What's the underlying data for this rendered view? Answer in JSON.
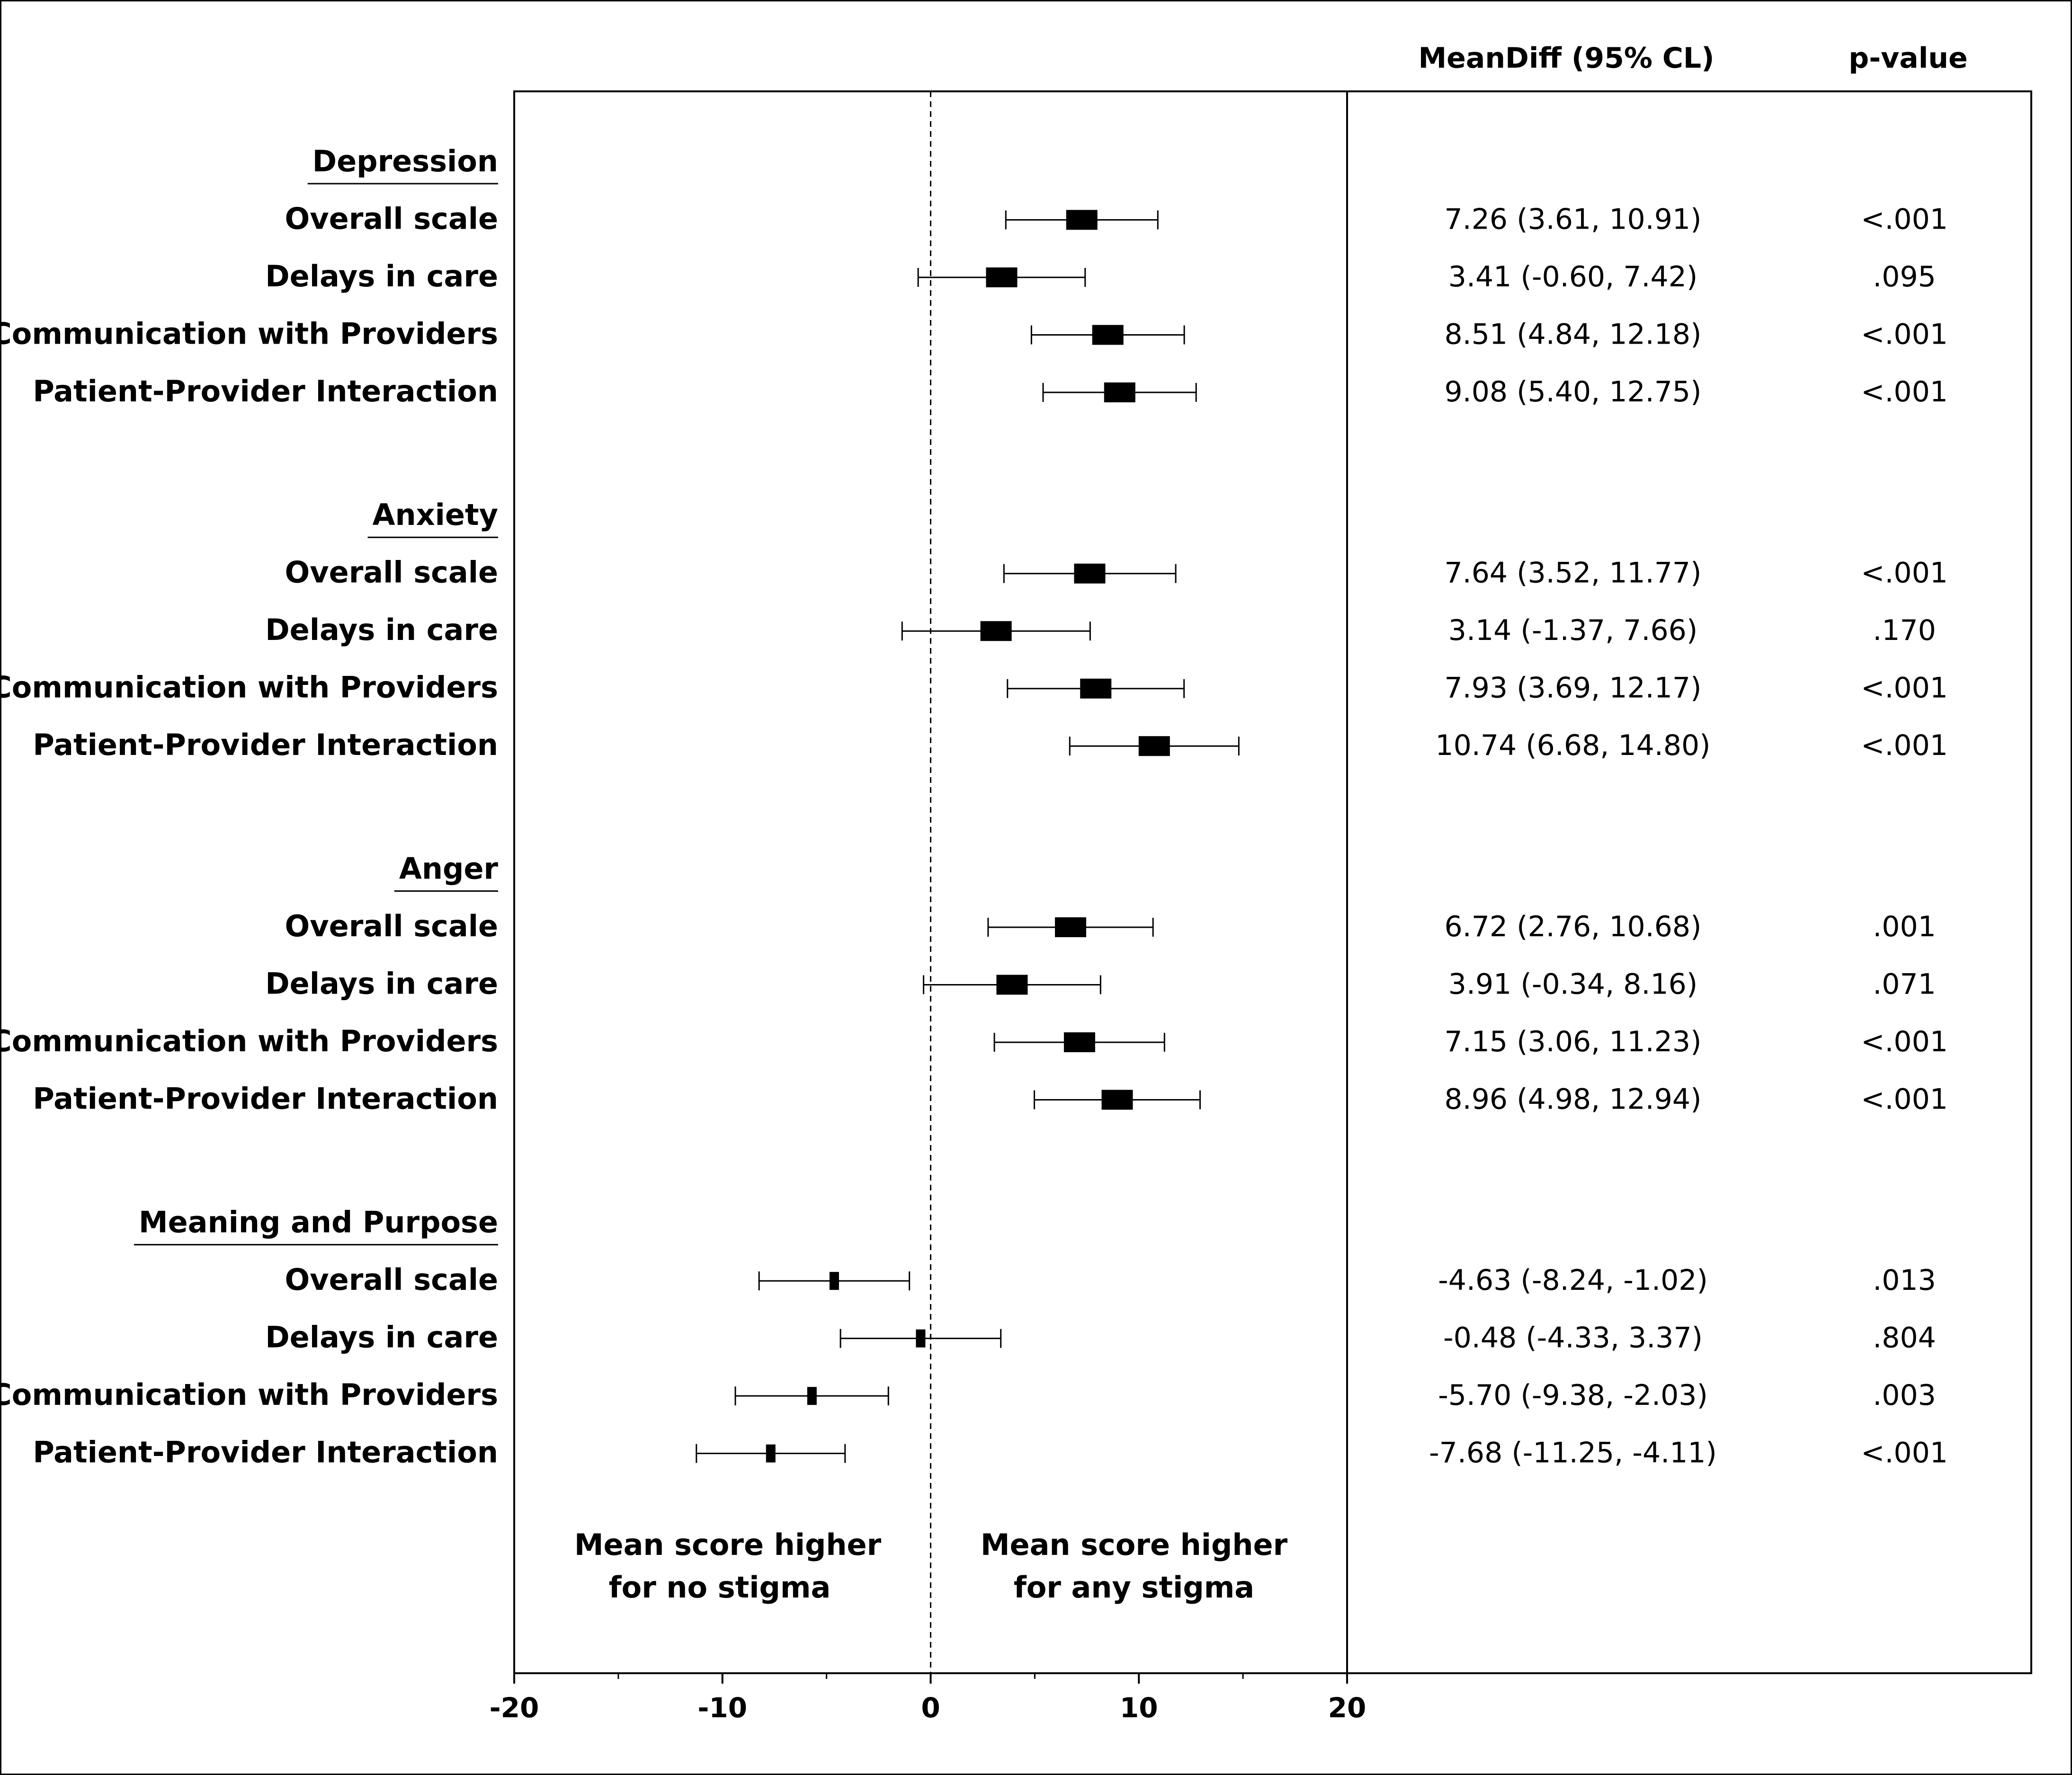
{
  "chart_data": {
    "type": "forest",
    "headers": {
      "estimate": "MeanDiff (95% CL)",
      "pvalue": "p-value"
    },
    "xlim": [
      -20,
      20
    ],
    "x_ticks": [
      -20,
      -10,
      0,
      10,
      20
    ],
    "reference_line": 0,
    "annotations": {
      "left": [
        "Mean score higher",
        "for no stigma"
      ],
      "right": [
        "Mean score higher",
        "for any stigma"
      ]
    },
    "groups": [
      {
        "name": "Depression",
        "rows": [
          {
            "label": "Overall scale",
            "mean": 7.26,
            "lower": 3.61,
            "upper": 10.91,
            "ci_text": "7.26 (3.61, 10.91)",
            "p": "<.001"
          },
          {
            "label": "Delays in care",
            "mean": 3.41,
            "lower": -0.6,
            "upper": 7.42,
            "ci_text": "3.41 (-0.60, 7.42)",
            "p": ".095"
          },
          {
            "label": "Communication with Providers",
            "mean": 8.51,
            "lower": 4.84,
            "upper": 12.18,
            "ci_text": "8.51 (4.84, 12.18)",
            "p": "<.001"
          },
          {
            "label": "Patient-Provider Interaction",
            "mean": 9.08,
            "lower": 5.4,
            "upper": 12.75,
            "ci_text": "9.08 (5.40, 12.75)",
            "p": "<.001"
          }
        ]
      },
      {
        "name": "Anxiety",
        "rows": [
          {
            "label": "Overall scale",
            "mean": 7.64,
            "lower": 3.52,
            "upper": 11.77,
            "ci_text": "7.64 (3.52, 11.77)",
            "p": "<.001"
          },
          {
            "label": "Delays in care",
            "mean": 3.14,
            "lower": -1.37,
            "upper": 7.66,
            "ci_text": "3.14 (-1.37, 7.66)",
            "p": ".170"
          },
          {
            "label": "Communication with Providers",
            "mean": 7.93,
            "lower": 3.69,
            "upper": 12.17,
            "ci_text": "7.93 (3.69, 12.17)",
            "p": "<.001"
          },
          {
            "label": "Patient-Provider Interaction",
            "mean": 10.74,
            "lower": 6.68,
            "upper": 14.8,
            "ci_text": "10.74 (6.68, 14.80)",
            "p": "<.001"
          }
        ]
      },
      {
        "name": "Anger",
        "rows": [
          {
            "label": "Overall scale",
            "mean": 6.72,
            "lower": 2.76,
            "upper": 10.68,
            "ci_text": "6.72 (2.76, 10.68)",
            "p": ".001"
          },
          {
            "label": "Delays in care",
            "mean": 3.91,
            "lower": -0.34,
            "upper": 8.16,
            "ci_text": "3.91 (-0.34, 8.16)",
            "p": ".071"
          },
          {
            "label": "Communication with Providers",
            "mean": 7.15,
            "lower": 3.06,
            "upper": 11.23,
            "ci_text": "7.15 (3.06, 11.23)",
            "p": "<.001"
          },
          {
            "label": "Patient-Provider Interaction",
            "mean": 8.96,
            "lower": 4.98,
            "upper": 12.94,
            "ci_text": "8.96 (4.98, 12.94)",
            "p": "<.001"
          }
        ]
      },
      {
        "name": "Meaning and Purpose",
        "rows": [
          {
            "label": "Overall scale",
            "mean": -4.63,
            "lower": -8.24,
            "upper": -1.02,
            "ci_text": "-4.63 (-8.24, -1.02)",
            "p": ".013"
          },
          {
            "label": "Delays in care",
            "mean": -0.48,
            "lower": -4.33,
            "upper": 3.37,
            "ci_text": "-0.48 (-4.33, 3.37)",
            "p": ".804"
          },
          {
            "label": "Communication with Providers",
            "mean": -5.7,
            "lower": -9.38,
            "upper": -2.03,
            "ci_text": "-5.70 (-9.38, -2.03)",
            "p": ".003"
          },
          {
            "label": "Patient-Provider Interaction",
            "mean": -7.68,
            "lower": -11.25,
            "upper": -4.11,
            "ci_text": "-7.68 (-11.25, -4.11)",
            "p": "<.001"
          }
        ]
      }
    ]
  }
}
